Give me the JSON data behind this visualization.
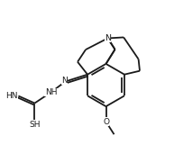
{
  "background_color": "#ffffff",
  "line_color": "#1a1a1a",
  "line_width": 1.3,
  "figsize": [
    1.93,
    1.61
  ],
  "dpi": 100,
  "xlim": [
    0.0,
    9.5
  ],
  "ylim": [
    0.5,
    8.0
  ]
}
